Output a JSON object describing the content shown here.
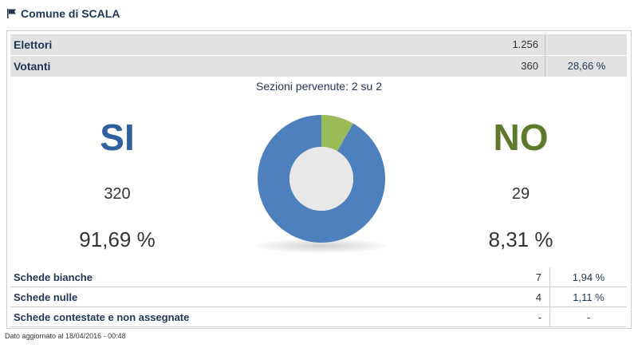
{
  "header": {
    "title": "Comune di SCALA"
  },
  "summary": {
    "elettori": {
      "label": "Elettori",
      "value": "1.256"
    },
    "votanti": {
      "label": "Votanti",
      "value": "360",
      "percent": "28,66 %"
    }
  },
  "sezioni": "Sezioni pervenute: 2 su 2",
  "results": {
    "si": {
      "label": "SI",
      "votes": "320",
      "percent": "91,69 %",
      "color": "#4e80be"
    },
    "no": {
      "label": "NO",
      "votes": "29",
      "percent": "8,31 %",
      "color": "#9bbb59"
    }
  },
  "chart_data": {
    "type": "pie",
    "categories": [
      "SI",
      "NO"
    ],
    "values": [
      91.69,
      8.31
    ],
    "colors": [
      "#4e80be",
      "#9bbb59"
    ]
  },
  "schede": [
    {
      "label": "Schede bianche",
      "value": "7",
      "percent": "1,94 %"
    },
    {
      "label": "Schede nulle",
      "value": "4",
      "percent": "1,11 %"
    },
    {
      "label": "Schede contestate e non assegnate",
      "value": "-",
      "percent": "-"
    }
  ],
  "footer": "Dato aggiornato al 18/04/2016 - 00:48",
  "icons": {
    "header": "flag-icon"
  }
}
